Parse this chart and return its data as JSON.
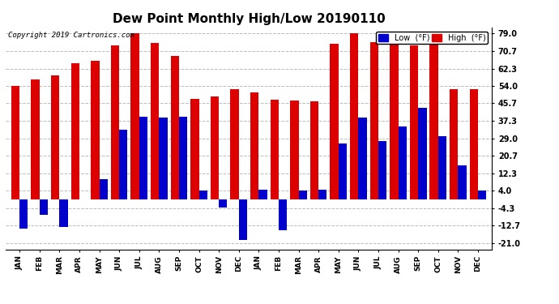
{
  "title": "Dew Point Monthly High/Low 20190110",
  "copyright": "Copyright 2019 Cartronics.com",
  "categories": [
    "JAN",
    "FEB",
    "MAR",
    "APR",
    "MAY",
    "JUN",
    "JUL",
    "AUG",
    "SEP",
    "OCT",
    "NOV",
    "DEC",
    "JAN",
    "FEB",
    "MAR",
    "APR",
    "MAY",
    "JUN",
    "JUL",
    "AUG",
    "SEP",
    "OCT",
    "NOV",
    "DEC"
  ],
  "high_values": [
    54.0,
    57.0,
    59.0,
    65.0,
    66.0,
    73.5,
    79.0,
    74.5,
    68.5,
    48.0,
    49.0,
    52.5,
    51.0,
    47.5,
    47.0,
    46.5,
    74.0,
    79.0,
    75.0,
    79.0,
    73.5,
    75.0,
    52.5,
    52.5
  ],
  "low_values": [
    -14.0,
    -7.5,
    -13.5,
    0.0,
    9.5,
    33.0,
    39.5,
    39.0,
    39.5,
    4.0,
    -4.0,
    -19.5,
    4.5,
    -15.0,
    4.0,
    4.5,
    26.5,
    39.0,
    27.5,
    34.5,
    43.5,
    30.0,
    16.0,
    4.0
  ],
  "high_color": "#dd0000",
  "low_color": "#0000cc",
  "bg_color": "#ffffff",
  "grid_color": "#bbbbbb",
  "yticks": [
    79.0,
    70.7,
    62.3,
    54.0,
    45.7,
    37.3,
    29.0,
    20.7,
    12.3,
    4.0,
    -4.3,
    -12.7,
    -21.0
  ],
  "ylim": [
    -24.0,
    82.0
  ],
  "bar_width": 0.42
}
